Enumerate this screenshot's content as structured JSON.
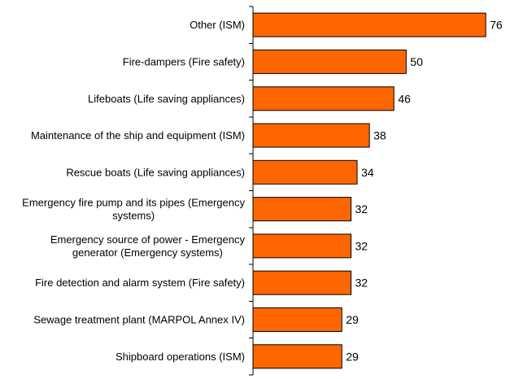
{
  "chart_data": {
    "type": "bar",
    "orientation": "horizontal",
    "title": "",
    "xlabel": "",
    "ylabel": "",
    "categories": [
      "Other (ISM)",
      "Fire-dampers (Fire safety)",
      "Lifeboats (Life saving appliances)",
      "Maintenance of the ship and equipment (ISM)",
      "Rescue boats (Life saving appliances)",
      "Emergency fire pump and its pipes (Emergency systems)",
      "Emergency source of power - Emergency generator (Emergency systems)",
      "Fire detection and alarm system (Fire safety)",
      "Sewage treatment plant (MARPOL Annex IV)",
      "Shipboard operations (ISM)"
    ],
    "category_lines": [
      [
        "Other (ISM)"
      ],
      [
        "Fire-dampers (Fire safety)"
      ],
      [
        "Lifeboats (Life saving appliances)"
      ],
      [
        "Maintenance of the ship and equipment (ISM)"
      ],
      [
        "Rescue boats (Life saving appliances)"
      ],
      [
        "Emergency fire pump and its pipes (Emergency",
        "systems)"
      ],
      [
        "Emergency source of power - Emergency",
        "generator (Emergency systems)"
      ],
      [
        "Fire detection and alarm system (Fire safety)"
      ],
      [
        "Sewage treatment plant (MARPOL Annex IV)"
      ],
      [
        "Shipboard operations (ISM)"
      ]
    ],
    "values": [
      76,
      50,
      46,
      38,
      34,
      32,
      32,
      32,
      29,
      29
    ],
    "data_labels": [
      "76",
      "50",
      "46",
      "38",
      "34",
      "32",
      "32",
      "32",
      "29",
      "29"
    ],
    "xlim": [
      0,
      80
    ],
    "grid": false,
    "legend": "none",
    "bar_color": "#ff6600",
    "bar_edge_color": "#000000"
  }
}
